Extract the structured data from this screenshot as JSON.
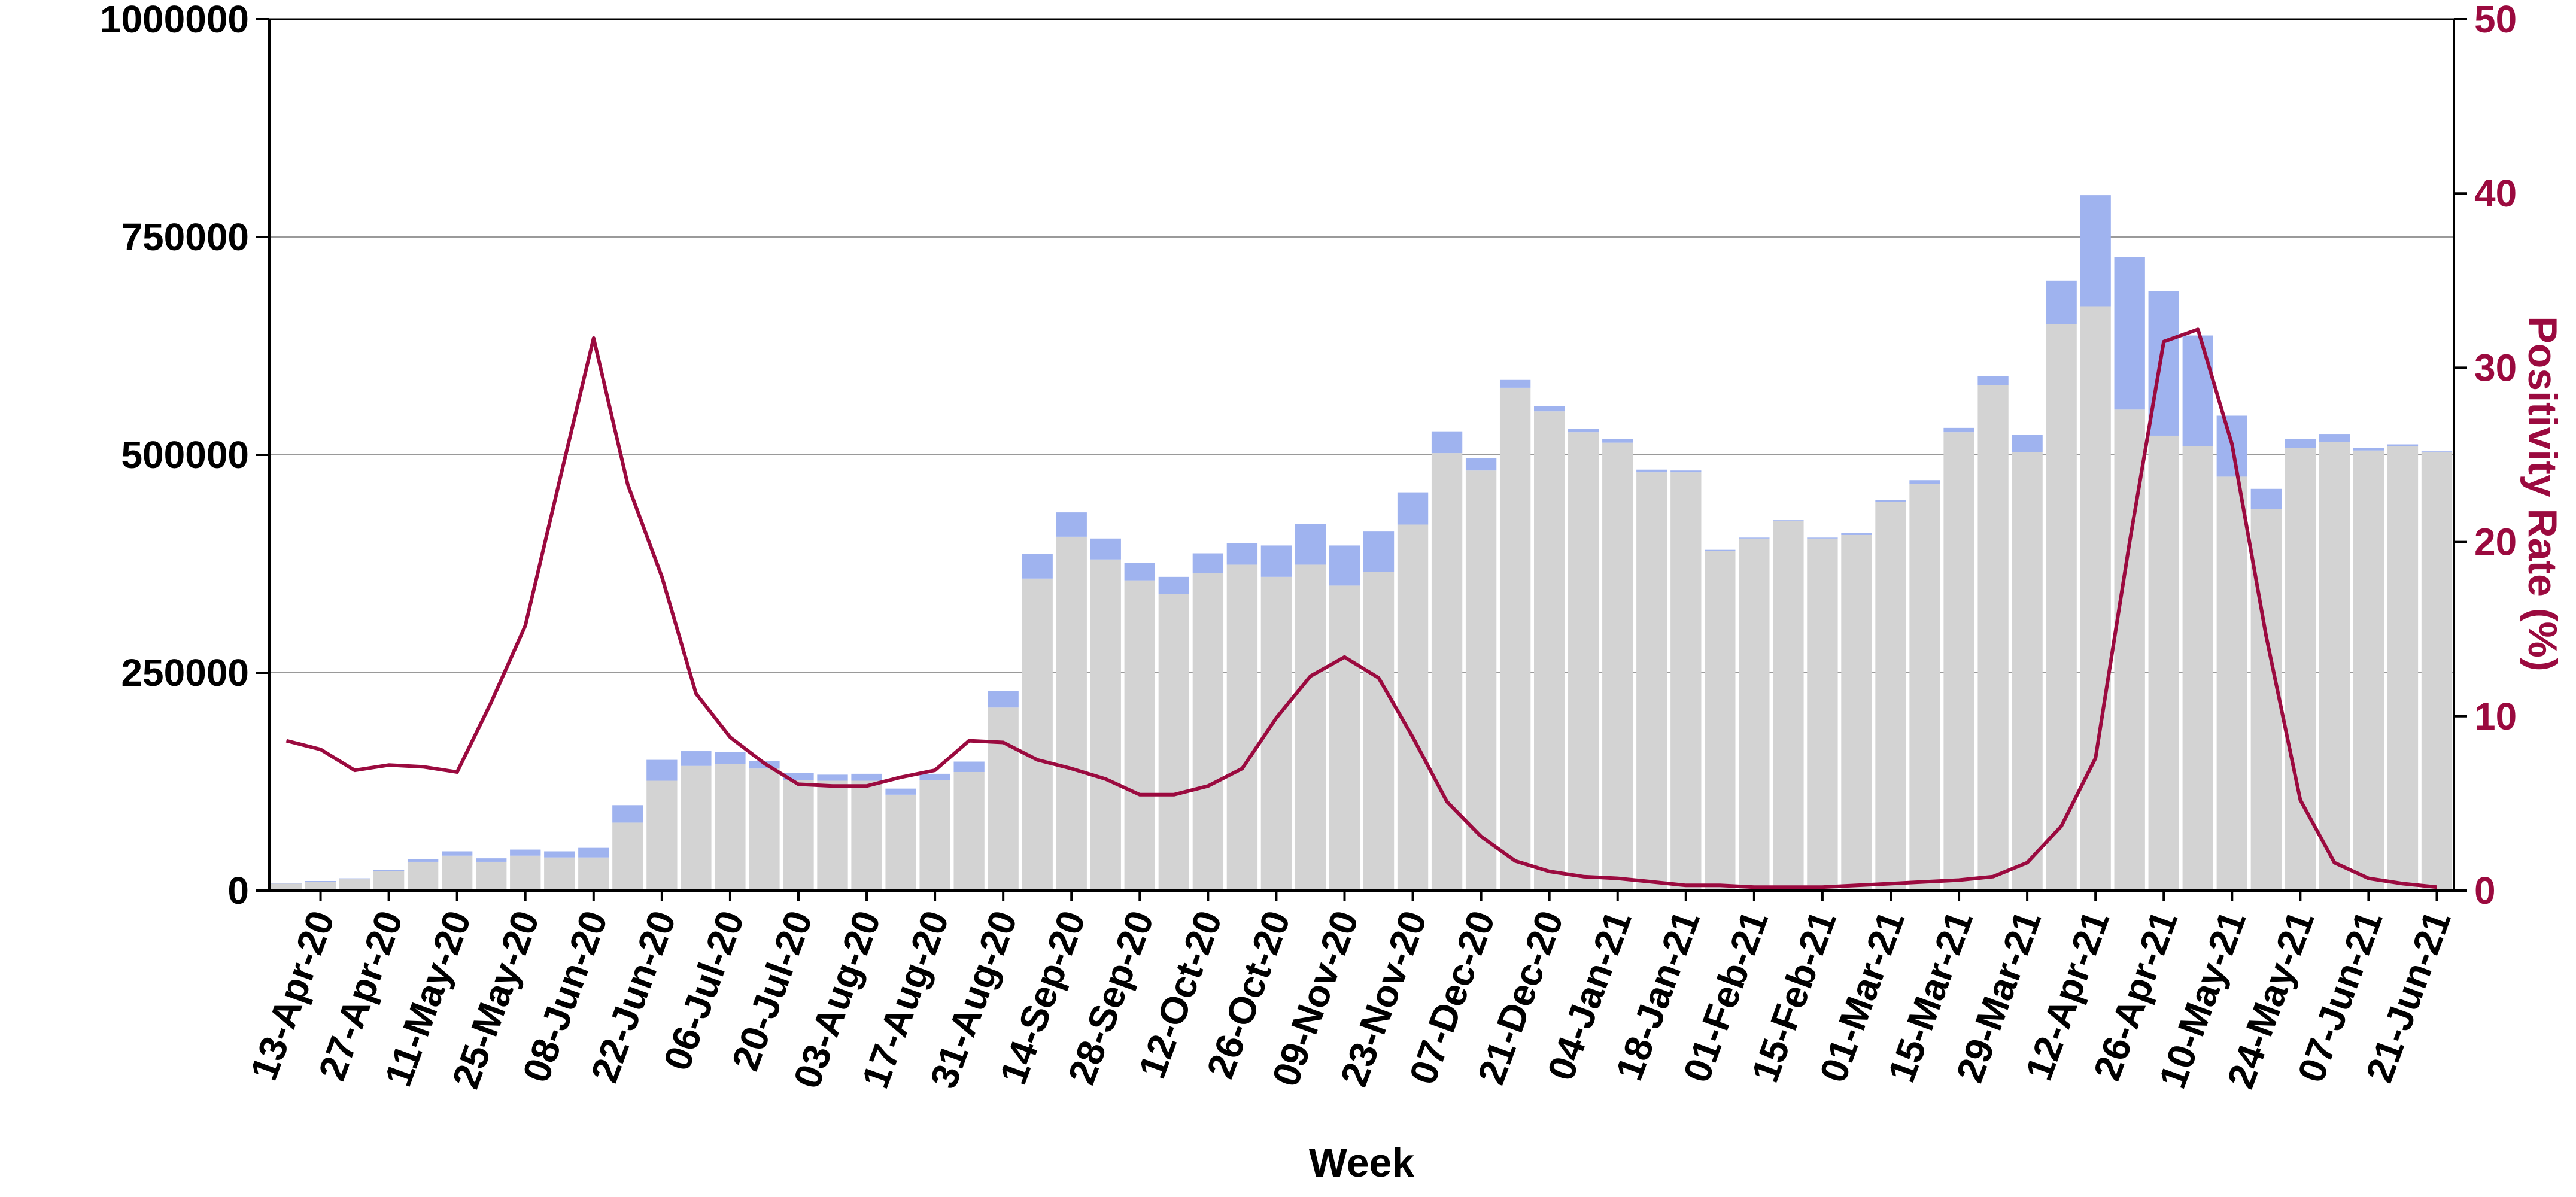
{
  "chart_data": {
    "type": "bar",
    "title": "",
    "xlabel": "Week",
    "ylabel": "",
    "y2label": "Positivity Rate (%)",
    "ylim": [
      0,
      1000000
    ],
    "y2lim": [
      0,
      50
    ],
    "yticks": [
      "0",
      "250000",
      "500000",
      "750000",
      "1000000"
    ],
    "y2ticks": [
      "0",
      "10",
      "20",
      "30",
      "40",
      "50"
    ],
    "grid": "horizontal",
    "stacked": true,
    "colors": {
      "grey_bar": "#d3d3d3",
      "blue_bar": "#9fb3ef",
      "line": "#9b0a3f",
      "right_axis": "#9b0a3f",
      "grid": "#9a9a9a",
      "axis": "#000000"
    },
    "x_ticklabels": [
      "13-Apr-20",
      "27-Apr-20",
      "11-May-20",
      "25-May-20",
      "08-Jun-20",
      "22-Jun-20",
      "06-Jul-20",
      "20-Jul-20",
      "03-Aug-20",
      "17-Aug-20",
      "31-Aug-20",
      "14-Sep-20",
      "28-Sep-20",
      "12-Oct-20",
      "26-Oct-20",
      "09-Nov-20",
      "23-Nov-20",
      "07-Dec-20",
      "21-Dec-20",
      "04-Jan-21",
      "18-Jan-21",
      "01-Feb-21",
      "15-Feb-21",
      "01-Mar-21",
      "15-Mar-21",
      "29-Mar-21",
      "12-Apr-21",
      "26-Apr-21",
      "10-May-21",
      "24-May-21",
      "07-Jun-21",
      "21-Jun-21"
    ],
    "series": [
      {
        "stack": "grey",
        "values": [
          8000,
          10000,
          13000,
          22000,
          33000,
          40000,
          33000,
          40000,
          38000,
          38000,
          78000,
          126000,
          143000,
          145000,
          140000,
          127000,
          126000,
          126000,
          110000,
          127000,
          136000,
          210000,
          358000,
          406000,
          380000,
          356000,
          340000,
          364000,
          374000,
          360000,
          374000,
          350000,
          366000,
          420000,
          502000,
          482000,
          577000,
          550000,
          526000,
          514000,
          480000,
          480000,
          390000,
          404000,
          424000,
          404000,
          408000,
          446000,
          467000,
          526000,
          580000,
          503000,
          650000,
          670000,
          552000,
          522000,
          510000,
          475000,
          438000,
          508000,
          515000,
          505000,
          510000,
          503000
        ]
      },
      {
        "stack": "blue",
        "values": [
          500,
          1000,
          1000,
          2000,
          3000,
          5000,
          4000,
          7000,
          7000,
          11000,
          20000,
          24000,
          17000,
          14000,
          9000,
          8000,
          7000,
          8000,
          7000,
          7000,
          12000,
          19000,
          28000,
          28000,
          24000,
          20000,
          20000,
          23000,
          25000,
          36000,
          47000,
          46000,
          46000,
          37000,
          25000,
          14000,
          9000,
          6000,
          4000,
          4000,
          3000,
          2000,
          1000,
          1000,
          1000,
          1000,
          2000,
          2000,
          4000,
          5000,
          10000,
          20000,
          50000,
          128000,
          175000,
          166000,
          127000,
          70000,
          23000,
          10000,
          9000,
          3000,
          2000,
          1000
        ]
      },
      {
        "name": "Positivity Rate (%)",
        "axis": "right",
        "type": "line",
        "values": [
          8.6,
          8.1,
          6.9,
          7.2,
          7.1,
          6.8,
          10.8,
          15.2,
          23.5,
          31.7,
          23.3,
          18.0,
          11.3,
          8.8,
          7.3,
          6.1,
          6.0,
          6.0,
          6.5,
          6.9,
          8.6,
          8.5,
          7.5,
          7.0,
          6.4,
          5.5,
          5.5,
          6.0,
          7.0,
          9.9,
          12.3,
          13.4,
          12.2,
          8.8,
          5.1,
          3.1,
          1.7,
          1.1,
          0.8,
          0.7,
          0.5,
          0.3,
          0.3,
          0.2,
          0.2,
          0.2,
          0.3,
          0.4,
          0.5,
          0.6,
          0.8,
          1.6,
          3.7,
          7.6,
          20.0,
          31.5,
          32.2,
          25.6,
          14.6,
          5.2,
          1.6,
          0.7,
          0.4,
          0.2
        ]
      }
    ]
  }
}
